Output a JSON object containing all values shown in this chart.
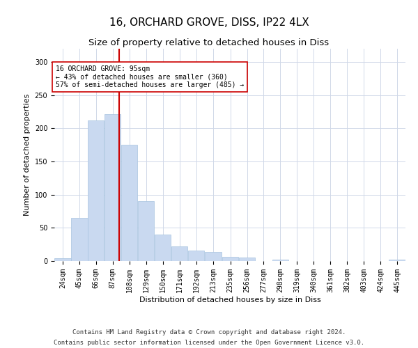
{
  "title": "16, ORCHARD GROVE, DISS, IP22 4LX",
  "subtitle": "Size of property relative to detached houses in Diss",
  "xlabel": "Distribution of detached houses by size in Diss",
  "ylabel": "Number of detached properties",
  "footnote1": "Contains HM Land Registry data © Crown copyright and database right 2024.",
  "footnote2": "Contains public sector information licensed under the Open Government Licence v3.0.",
  "bar_color": "#c9d9f0",
  "bar_edge_color": "#a8c4e0",
  "grid_color": "#d0d8e8",
  "vline_color": "#cc0000",
  "annotation_box_color": "#cc0000",
  "annotation_text": "16 ORCHARD GROVE: 95sqm\n← 43% of detached houses are smaller (360)\n57% of semi-detached houses are larger (485) →",
  "vline_x": 95,
  "categories": [
    "24sqm",
    "45sqm",
    "66sqm",
    "87sqm",
    "108sqm",
    "129sqm",
    "150sqm",
    "171sqm",
    "192sqm",
    "213sqm",
    "235sqm",
    "256sqm",
    "277sqm",
    "298sqm",
    "319sqm",
    "340sqm",
    "361sqm",
    "382sqm",
    "403sqm",
    "424sqm",
    "445sqm"
  ],
  "bin_edges": [
    13.5,
    34.5,
    55.5,
    76.5,
    97.5,
    118.5,
    139.5,
    160.5,
    181.5,
    202.5,
    224.5,
    245.5,
    266.5,
    287.5,
    308.5,
    329.5,
    350.5,
    371.5,
    392.5,
    413.5,
    434.5,
    455.5
  ],
  "values": [
    4,
    65,
    212,
    221,
    175,
    90,
    40,
    22,
    16,
    14,
    6,
    5,
    0,
    2,
    0,
    0,
    0,
    0,
    0,
    0,
    2
  ],
  "ylim": [
    0,
    320
  ],
  "yticks": [
    0,
    50,
    100,
    150,
    200,
    250,
    300
  ],
  "title_fontsize": 11,
  "subtitle_fontsize": 9.5,
  "tick_fontsize": 7,
  "label_fontsize": 8,
  "footnote_fontsize": 6.5
}
